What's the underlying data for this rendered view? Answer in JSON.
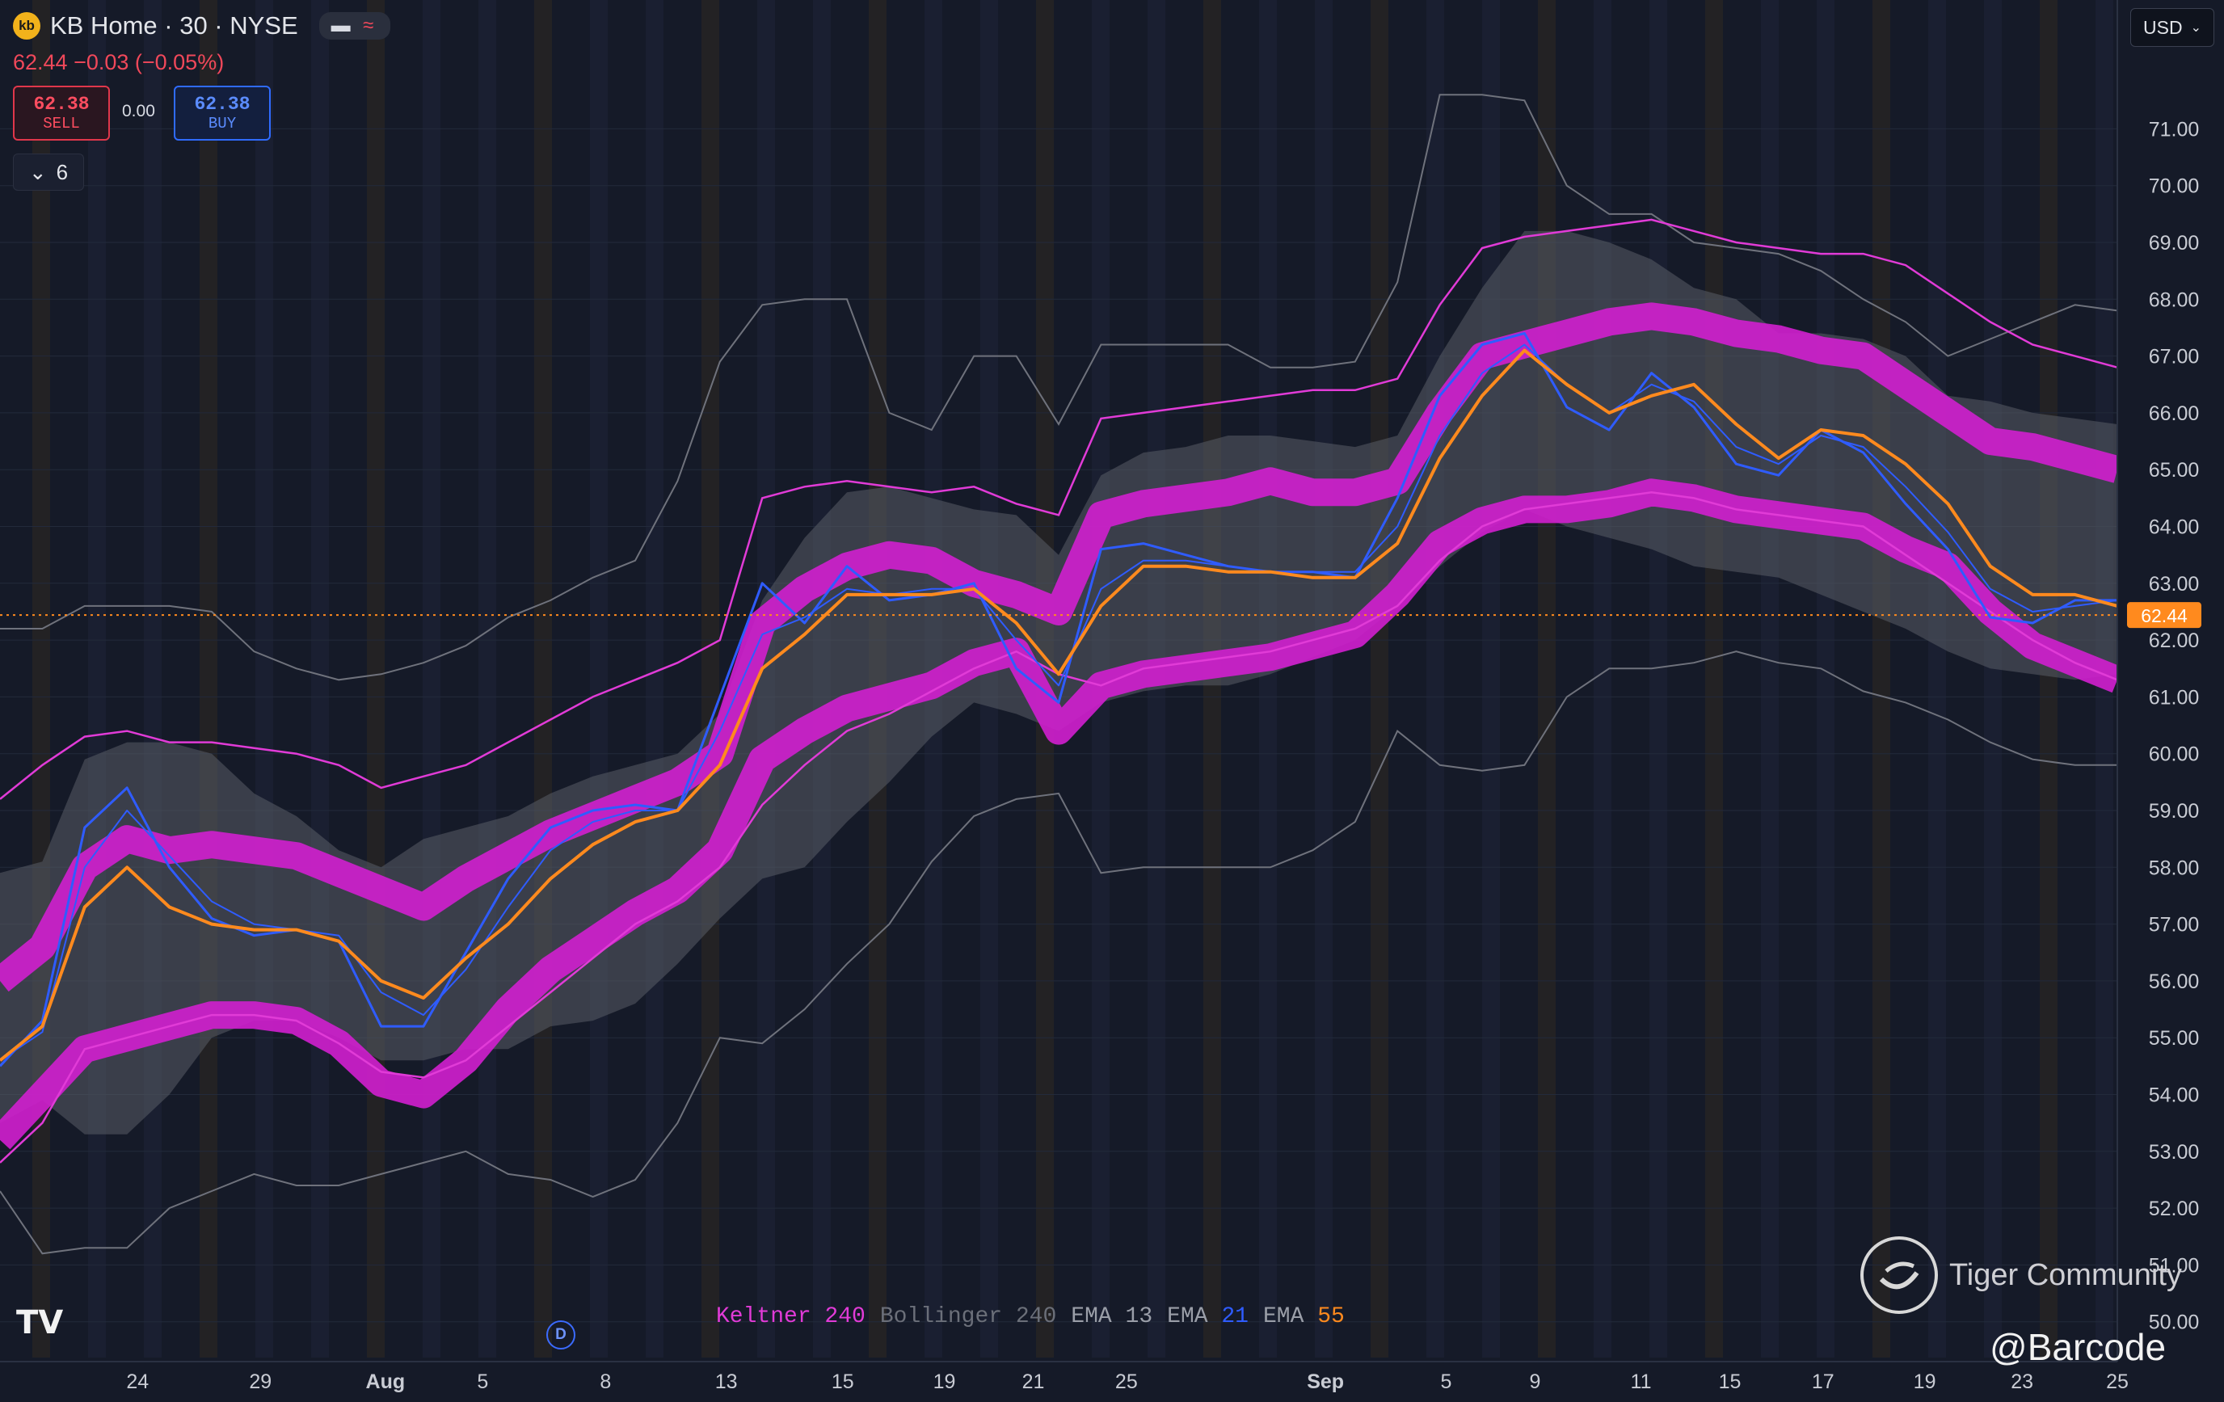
{
  "header": {
    "logo_text": "kb",
    "title": "KB Home · 30 · NYSE",
    "quote": "62.44 −0.03 (−0.05%)",
    "sell_price": "62.38",
    "sell_label": "SELL",
    "buy_price": "62.38",
    "buy_label": "BUY",
    "spread": "0.00",
    "indicator_count": "6",
    "currency": "USD"
  },
  "legend": [
    {
      "name": "Keltner",
      "param": "240",
      "name_color": "#e13bd7",
      "param_color": "#e13bd7"
    },
    {
      "name": "Bollinger",
      "param": "240",
      "name_color": "#6b6f79",
      "param_color": "#6b6f79"
    },
    {
      "name": "EMA",
      "param": "13",
      "name_color": "#9a9ea8",
      "param_color": "#9a9ea8"
    },
    {
      "name": "EMA",
      "param": "21",
      "name_color": "#9a9ea8",
      "param_color": "#2f5cff"
    },
    {
      "name": "EMA",
      "param": "55",
      "name_color": "#9a9ea8",
      "param_color": "#ff8a1e"
    }
  ],
  "watermark": {
    "brand": "Tiger Community",
    "handle": "@Barcode",
    "chart_brand": "TV",
    "event_marker": "D"
  },
  "colors": {
    "ema13": "#2f5cff",
    "ema55": "#ff8a1e",
    "keltner": "#d21fcf",
    "bollinger": "#5a5d66",
    "price_tag": "#ff8a1e"
  },
  "chart_data": {
    "type": "line",
    "title": "",
    "ylim": [
      50,
      71.6
    ],
    "y_ticks": [
      50,
      51,
      52,
      53,
      54,
      55,
      56,
      57,
      58,
      59,
      60,
      61,
      62,
      63,
      64,
      65,
      66,
      67,
      68,
      69,
      70,
      71
    ],
    "y_tick_labels": [
      "50.00",
      "51.00",
      "52.00",
      "53.00",
      "54.00",
      "55.00",
      "56.00",
      "57.00",
      "58.00",
      "59.00",
      "60.00",
      "61.00",
      "62.00",
      "63.00",
      "64.00",
      "65.00",
      "66.00",
      "67.00",
      "68.00",
      "69.00",
      "70.00",
      "71.00"
    ],
    "x_tick_labels": [
      "24",
      "29",
      "Aug",
      "5",
      "8",
      "13",
      "15",
      "19",
      "21",
      "25",
      "Sep",
      "5",
      "9",
      "11",
      "15",
      "17",
      "19",
      "23",
      "25"
    ],
    "x_tick_pos": [
      0.065,
      0.123,
      0.182,
      0.228,
      0.286,
      0.343,
      0.398,
      0.446,
      0.488,
      0.532,
      0.626,
      0.683,
      0.725,
      0.775,
      0.817,
      0.861,
      0.909,
      0.955,
      1.0
    ],
    "current_price": 62.44,
    "current_price_label": "62.44",
    "x": [
      0,
      0.02,
      0.04,
      0.06,
      0.08,
      0.1,
      0.12,
      0.14,
      0.16,
      0.18,
      0.2,
      0.22,
      0.24,
      0.26,
      0.28,
      0.3,
      0.32,
      0.34,
      0.36,
      0.38,
      0.4,
      0.42,
      0.44,
      0.46,
      0.48,
      0.5,
      0.52,
      0.54,
      0.56,
      0.58,
      0.6,
      0.62,
      0.64,
      0.66,
      0.68,
      0.7,
      0.72,
      0.74,
      0.76,
      0.78,
      0.8,
      0.82,
      0.84,
      0.86,
      0.88,
      0.9,
      0.92,
      0.94,
      0.96,
      0.98,
      1.0
    ],
    "series": [
      {
        "name": "EMA 13",
        "color": "#2f5cff",
        "width": 3,
        "values": [
          54.5,
          55.3,
          58.7,
          59.4,
          58.0,
          57.1,
          56.8,
          56.9,
          56.7,
          55.2,
          55.2,
          56.5,
          57.8,
          58.7,
          59.0,
          59.1,
          59.0,
          61.0,
          63.0,
          62.3,
          63.3,
          62.7,
          62.8,
          63.0,
          61.5,
          60.9,
          63.6,
          63.7,
          63.5,
          63.3,
          63.2,
          63.2,
          63.1,
          64.5,
          66.3,
          67.2,
          67.4,
          66.1,
          65.7,
          66.7,
          66.1,
          65.1,
          64.9,
          65.7,
          65.3,
          64.4,
          63.6,
          62.4,
          62.3,
          62.7,
          62.7
        ]
      },
      {
        "name": "EMA 21",
        "color": "#2f5cff",
        "width": 2,
        "values": [
          54.6,
          55.1,
          58.0,
          59.0,
          58.2,
          57.4,
          57.0,
          56.9,
          56.8,
          55.8,
          55.4,
          56.2,
          57.3,
          58.3,
          58.8,
          59.0,
          59.0,
          60.4,
          62.1,
          62.4,
          62.9,
          62.8,
          62.9,
          62.9,
          62.0,
          61.2,
          62.9,
          63.4,
          63.4,
          63.3,
          63.2,
          63.2,
          63.2,
          64.0,
          65.6,
          66.7,
          67.2,
          66.5,
          66.0,
          66.5,
          66.2,
          65.4,
          65.1,
          65.6,
          65.4,
          64.7,
          63.9,
          62.9,
          62.5,
          62.6,
          62.7
        ]
      },
      {
        "name": "EMA 55",
        "color": "#ff8a1e",
        "width": 4,
        "values": [
          54.6,
          55.2,
          57.3,
          58.0,
          57.3,
          57.0,
          56.9,
          56.9,
          56.7,
          56.0,
          55.7,
          56.4,
          57.0,
          57.8,
          58.4,
          58.8,
          59.0,
          59.8,
          61.5,
          62.1,
          62.8,
          62.8,
          62.8,
          62.9,
          62.3,
          61.4,
          62.6,
          63.3,
          63.3,
          63.2,
          63.2,
          63.1,
          63.1,
          63.7,
          65.2,
          66.3,
          67.1,
          66.5,
          66.0,
          66.3,
          66.5,
          65.8,
          65.2,
          65.7,
          65.6,
          65.1,
          64.4,
          63.3,
          62.8,
          62.8,
          62.6
        ]
      }
    ],
    "keltner": {
      "mid": [
        56.0,
        56.6,
        58.0,
        58.5,
        58.3,
        58.4,
        58.3,
        58.2,
        57.9,
        57.6,
        57.3,
        57.8,
        58.2,
        58.6,
        58.9,
        59.2,
        59.5,
        60.0,
        62.3,
        62.9,
        63.3,
        63.5,
        63.4,
        63.0,
        62.8,
        62.5,
        64.2,
        64.4,
        64.5,
        64.6,
        64.8,
        64.6,
        64.6,
        64.8,
        66.0,
        67.0,
        67.2,
        67.4,
        67.6,
        67.7,
        67.6,
        67.4,
        67.3,
        67.1,
        67.0,
        66.5,
        66.0,
        65.5,
        65.4,
        65.2,
        65.0
      ],
      "upper": [
        59.2,
        59.8,
        60.3,
        60.4,
        60.2,
        60.2,
        60.1,
        60.0,
        59.8,
        59.4,
        59.6,
        59.8,
        60.2,
        60.6,
        61.0,
        61.3,
        61.6,
        62.0,
        64.5,
        64.7,
        64.8,
        64.7,
        64.6,
        64.7,
        64.4,
        64.2,
        65.9,
        66.0,
        66.1,
        66.2,
        66.3,
        66.4,
        66.4,
        66.6,
        67.9,
        68.9,
        69.1,
        69.2,
        69.3,
        69.4,
        69.2,
        69.0,
        68.9,
        68.8,
        68.8,
        68.6,
        68.1,
        67.6,
        67.2,
        67.0,
        66.8
      ],
      "lower": [
        52.8,
        53.5,
        54.8,
        55.0,
        55.2,
        55.4,
        55.4,
        55.3,
        54.9,
        54.4,
        54.3,
        54.6,
        55.2,
        55.8,
        56.4,
        57.0,
        57.4,
        58.0,
        59.1,
        59.8,
        60.4,
        60.7,
        61.1,
        61.5,
        61.8,
        61.4,
        61.2,
        61.5,
        61.6,
        61.7,
        61.8,
        62.0,
        62.2,
        62.6,
        63.4,
        64.0,
        64.3,
        64.4,
        64.5,
        64.6,
        64.5,
        64.3,
        64.2,
        64.1,
        64.0,
        63.5,
        63.0,
        62.5,
        62.0,
        61.6,
        61.3
      ],
      "lower_band": [
        53.2,
        54.0,
        54.8,
        55.0,
        55.2,
        55.4,
        55.4,
        55.3,
        54.9,
        54.2,
        54.0,
        54.6,
        55.5,
        56.2,
        56.7,
        57.2,
        57.6,
        58.3,
        59.9,
        60.4,
        60.8,
        61.0,
        61.2,
        61.6,
        61.8,
        60.4,
        61.2,
        61.4,
        61.5,
        61.6,
        61.7,
        61.9,
        62.1,
        62.8,
        63.7,
        64.1,
        64.3,
        64.3,
        64.4,
        64.6,
        64.5,
        64.3,
        64.2,
        64.1,
        64.0,
        63.6,
        63.3,
        62.5,
        61.9,
        61.6,
        61.3
      ]
    },
    "bollinger": {
      "band_upper": [
        57.9,
        58.1,
        59.9,
        60.2,
        60.2,
        60.0,
        59.3,
        58.9,
        58.3,
        58.0,
        58.5,
        58.7,
        58.9,
        59.3,
        59.6,
        59.8,
        60.0,
        60.7,
        62.7,
        63.8,
        64.6,
        64.7,
        64.5,
        64.3,
        64.2,
        63.5,
        64.9,
        65.3,
        65.4,
        65.6,
        65.6,
        65.5,
        65.4,
        65.6,
        67.0,
        68.2,
        69.2,
        69.2,
        69.0,
        68.7,
        68.2,
        68.0,
        67.4,
        67.4,
        67.3,
        67.0,
        66.3,
        66.2,
        66.0,
        65.9,
        65.8
      ],
      "band_lower": [
        53.5,
        53.9,
        53.3,
        53.3,
        54.0,
        55.0,
        55.3,
        55.3,
        55.0,
        54.6,
        54.6,
        54.8,
        54.8,
        55.2,
        55.3,
        55.6,
        56.3,
        57.1,
        57.8,
        58.0,
        58.8,
        59.5,
        60.3,
        60.9,
        60.7,
        60.4,
        60.9,
        61.1,
        61.2,
        61.2,
        61.4,
        61.7,
        62.0,
        62.6,
        63.3,
        63.9,
        64.3,
        64.0,
        63.8,
        63.6,
        63.3,
        63.2,
        63.1,
        62.8,
        62.5,
        62.2,
        61.8,
        61.5,
        61.4,
        61.3,
        61.4
      ],
      "outer_upper": [
        62.2,
        62.2,
        62.6,
        62.6,
        62.6,
        62.5,
        61.8,
        61.5,
        61.3,
        61.4,
        61.6,
        61.9,
        62.4,
        62.7,
        63.1,
        63.4,
        64.8,
        66.9,
        67.9,
        68.0,
        68.0,
        66.0,
        65.7,
        67.0,
        67.0,
        65.8,
        67.2,
        67.2,
        67.2,
        67.2,
        66.8,
        66.8,
        66.9,
        68.3,
        71.6,
        71.6,
        71.5,
        70.0,
        69.5,
        69.5,
        69.0,
        68.9,
        68.8,
        68.5,
        68.0,
        67.6,
        67.0,
        67.3,
        67.6,
        67.9,
        67.8
      ],
      "outer_lower": [
        52.3,
        51.2,
        51.3,
        51.3,
        52.0,
        52.3,
        52.6,
        52.4,
        52.4,
        52.6,
        52.8,
        53.0,
        52.6,
        52.5,
        52.2,
        52.5,
        53.5,
        55.0,
        54.9,
        55.5,
        56.3,
        57.0,
        58.1,
        58.9,
        59.2,
        59.3,
        57.9,
        58.0,
        58.0,
        58.0,
        58.0,
        58.3,
        58.8,
        60.4,
        59.8,
        59.7,
        59.8,
        61.0,
        61.5,
        61.5,
        61.6,
        61.8,
        61.6,
        61.5,
        61.1,
        60.9,
        60.6,
        60.2,
        59.9,
        59.8,
        59.8
      ]
    }
  }
}
